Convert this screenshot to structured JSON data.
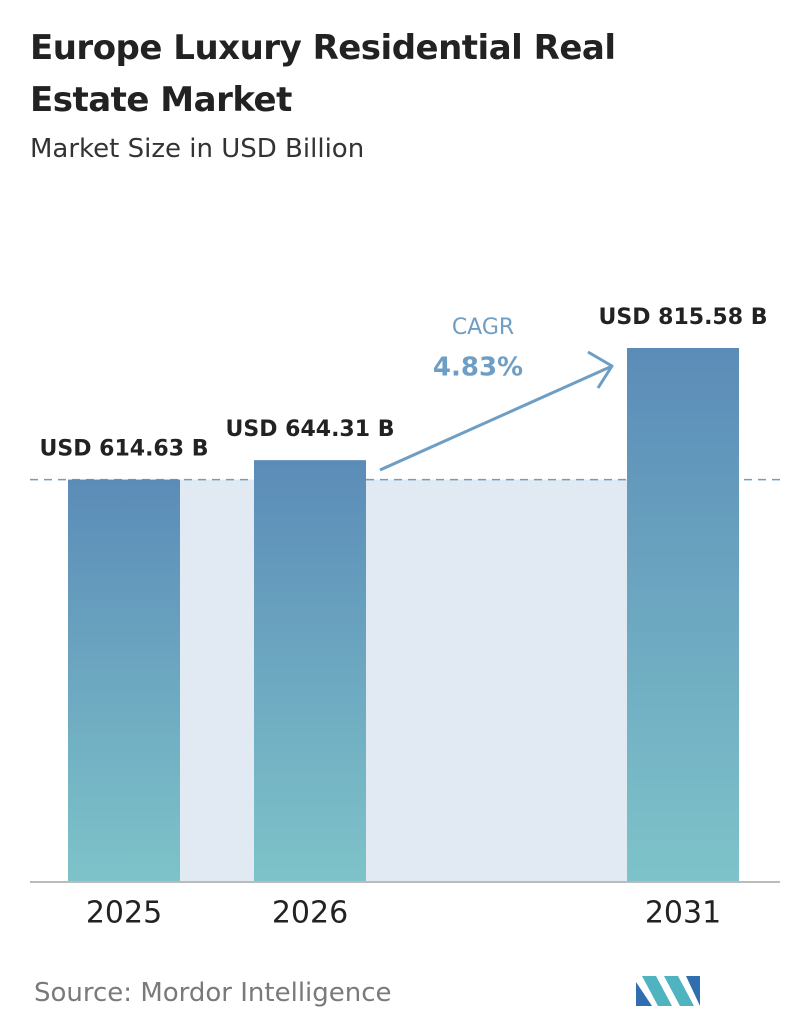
{
  "chart_data": {
    "type": "bar",
    "title": "Europe Luxury Residential Real Estate Market",
    "subtitle": "Market Size in USD Billion",
    "categories": [
      "2025",
      "2026",
      "2031"
    ],
    "values": [
      614.63,
      644.31,
      815.58
    ],
    "value_labels": [
      "USD 614.63 B",
      "USD 644.31 B",
      "USD 815.58 B"
    ],
    "annotations": [
      "CAGR",
      "4.83%"
    ],
    "source": "Source: Mordor Intelligence"
  }
}
